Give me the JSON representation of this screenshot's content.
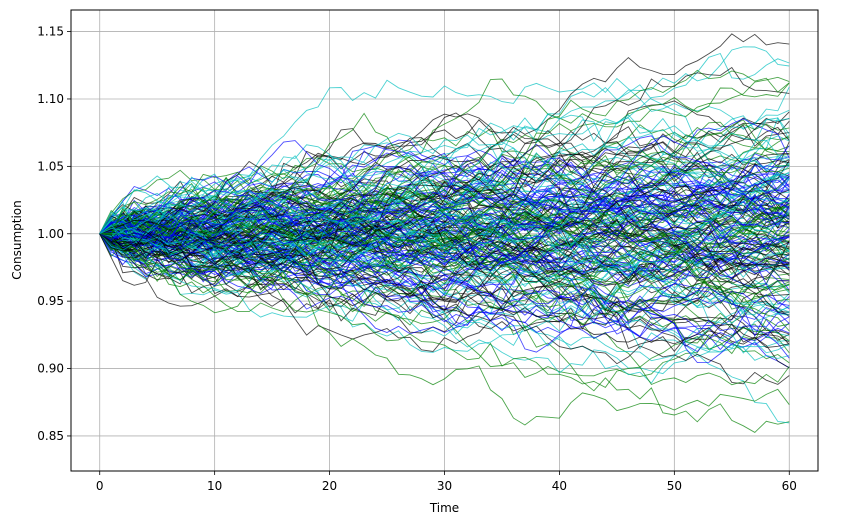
{
  "chart_data": {
    "type": "line",
    "title": "",
    "xlabel": "Time",
    "ylabel": "Consumption",
    "xlim": [
      -2.5,
      62.5
    ],
    "ylim": [
      0.824,
      1.166
    ],
    "xticks": [
      0,
      10,
      20,
      30,
      40,
      50,
      60
    ],
    "yticks": [
      0.85,
      0.9,
      0.95,
      1.0,
      1.05,
      1.1,
      1.15
    ],
    "xtick_labels": [
      "0",
      "10",
      "20",
      "30",
      "40",
      "50",
      "60"
    ],
    "ytick_labels": [
      "0.85",
      "0.90",
      "0.95",
      "1.00",
      "1.05",
      "1.10",
      "1.15"
    ],
    "grid": true,
    "legend": "none",
    "series_colors": [
      "#0000ff",
      "#008000",
      "#00bfbf",
      "#000000"
    ],
    "n_paths": 220,
    "n_steps": 60,
    "start_value": 1.0,
    "step_sd": 0.0066
  }
}
